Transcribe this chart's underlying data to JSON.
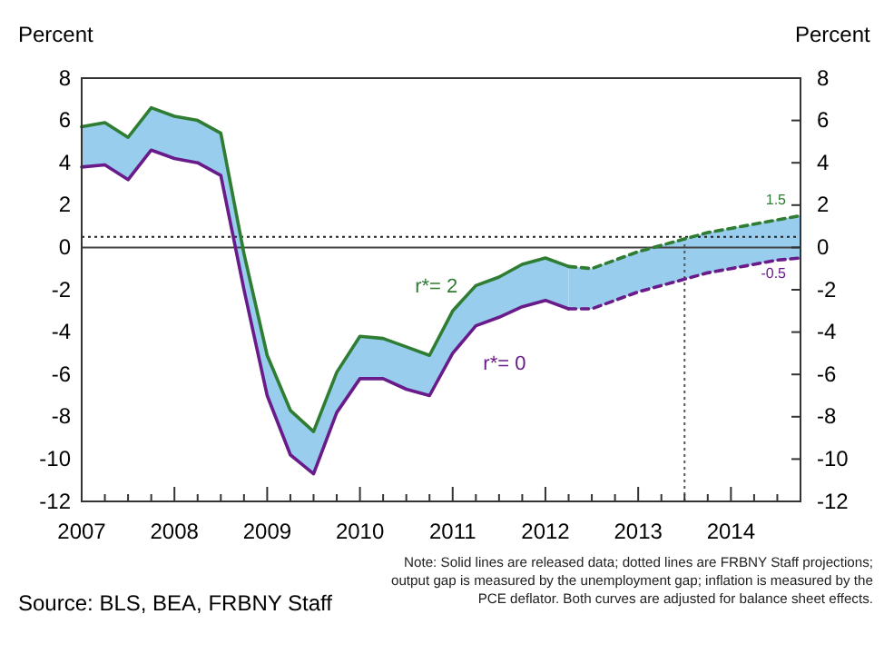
{
  "chart_data": {
    "type": "line",
    "ylabel": "Percent",
    "y2label": "Percent",
    "xlim": [
      2007,
      2014.75
    ],
    "xticks": [
      {
        "value": 2007,
        "label": "2007"
      },
      {
        "value": 2007.25,
        "label": null
      },
      {
        "value": 2007.5,
        "label": null
      },
      {
        "value": 2007.75,
        "label": null
      },
      {
        "value": 2008,
        "label": "2008"
      },
      {
        "value": 2008.25,
        "label": null
      },
      {
        "value": 2008.5,
        "label": null
      },
      {
        "value": 2008.75,
        "label": null
      },
      {
        "value": 2009,
        "label": "2009"
      },
      {
        "value": 2009.25,
        "label": null
      },
      {
        "value": 2009.5,
        "label": null
      },
      {
        "value": 2009.75,
        "label": null
      },
      {
        "value": 2010,
        "label": "2010"
      },
      {
        "value": 2010.25,
        "label": null
      },
      {
        "value": 2010.5,
        "label": null
      },
      {
        "value": 2010.75,
        "label": null
      },
      {
        "value": 2011,
        "label": "2011"
      },
      {
        "value": 2011.25,
        "label": null
      },
      {
        "value": 2011.5,
        "label": null
      },
      {
        "value": 2011.75,
        "label": null
      },
      {
        "value": 2012,
        "label": "2012"
      },
      {
        "value": 2012.25,
        "label": null
      },
      {
        "value": 2012.5,
        "label": null
      },
      {
        "value": 2012.75,
        "label": null
      },
      {
        "value": 2013,
        "label": "2013"
      },
      {
        "value": 2013.25,
        "label": null
      },
      {
        "value": 2013.5,
        "label": null
      },
      {
        "value": 2013.75,
        "label": null
      },
      {
        "value": 2014,
        "label": "2014"
      },
      {
        "value": 2014.25,
        "label": null
      },
      {
        "value": 2014.5,
        "label": null
      }
    ],
    "ylim": [
      -12,
      8
    ],
    "yticks": [
      -12,
      -10,
      -8,
      -6,
      -4,
      -2,
      0,
      2,
      4,
      6,
      8
    ],
    "y2lim": [
      -12,
      8
    ],
    "y2ticks": [
      -12,
      -10,
      -8,
      -6,
      -4,
      -2,
      0,
      2,
      4,
      6,
      8
    ],
    "grid": false,
    "legend": false,
    "marker": "none",
    "series": [
      {
        "name": "r*= 2",
        "color": "#2e7d32",
        "line_style": "solid",
        "x": [
          2007,
          2007.25,
          2007.5,
          2007.75,
          2008,
          2008.25,
          2008.5,
          2008.75,
          2009,
          2009.25,
          2009.5,
          2009.75,
          2010,
          2010.25,
          2010.5,
          2010.75,
          2011,
          2011.25,
          2011.5,
          2011.75,
          2012,
          2012.25
        ],
        "values": [
          5.7,
          5.9,
          5.2,
          6.6,
          6.2,
          6.0,
          5.4,
          -0.3,
          -5.1,
          -7.7,
          -8.7,
          -5.9,
          -4.2,
          -4.3,
          -4.7,
          -5.1,
          -3.0,
          -1.8,
          -1.4,
          -0.8,
          -0.5,
          -0.9
        ],
        "upper": [
          5.7,
          5.9,
          5.2,
          6.6,
          6.2,
          6.0,
          5.4,
          -0.3,
          -5.1,
          -7.7,
          -8.7,
          -5.9,
          -4.2,
          -4.3,
          -4.7,
          -5.1,
          -3.0,
          -1.8,
          -1.4,
          -0.8,
          -0.5,
          -0.9
        ],
        "lower": [
          3.8,
          3.9,
          3.2,
          4.6,
          4.2,
          4.0,
          3.4,
          -2.0,
          -7.0,
          -9.8,
          -10.7,
          -7.8,
          -6.2,
          -6.2,
          -6.7,
          -7.0,
          -5.0,
          -3.7,
          -3.3,
          -2.8,
          -2.5,
          -2.9
        ]
      },
      {
        "color": "#2e7d32",
        "line_style": "dashed",
        "x": [
          2012.25,
          2012.5,
          2012.75,
          2013,
          2013.25,
          2013.5,
          2013.75,
          2014,
          2014.25,
          2014.5,
          2014.75
        ],
        "values": [
          -0.9,
          -1.0,
          -0.6,
          -0.2,
          0.1,
          0.4,
          0.7,
          0.9,
          1.1,
          1.3,
          1.5
        ],
        "upper": [
          -0.9,
          -1.0,
          -0.6,
          -0.2,
          0.1,
          0.4,
          0.7,
          0.9,
          1.1,
          1.3,
          1.5
        ],
        "lower": [
          -2.9,
          -2.9,
          -2.5,
          -2.1,
          -1.8,
          -1.5,
          -1.2,
          -1.0,
          -0.8,
          -0.6,
          -0.5
        ],
        "value_labels": [
          null,
          null,
          null,
          null,
          null,
          null,
          null,
          null,
          null,
          null,
          "1.5"
        ]
      },
      {
        "name": "r*= 0",
        "color": "#6a1b8a",
        "line_style": "solid",
        "x": [
          2007,
          2007.25,
          2007.5,
          2007.75,
          2008,
          2008.25,
          2008.5,
          2008.75,
          2009,
          2009.25,
          2009.5,
          2009.75,
          2010,
          2010.25,
          2010.5,
          2010.75,
          2011,
          2011.25,
          2011.5,
          2011.75,
          2012,
          2012.25
        ],
        "values": [
          3.8,
          3.9,
          3.2,
          4.6,
          4.2,
          4.0,
          3.4,
          -2.0,
          -7.0,
          -9.8,
          -10.7,
          -7.8,
          -6.2,
          -6.2,
          -6.7,
          -7.0,
          -5.0,
          -3.7,
          -3.3,
          -2.8,
          -2.5,
          -2.9
        ]
      },
      {
        "color": "#6a1b8a",
        "line_style": "dashed",
        "x": [
          2012.25,
          2012.5,
          2012.75,
          2013,
          2013.25,
          2013.5,
          2013.75,
          2014,
          2014.25,
          2014.5,
          2014.75
        ],
        "values": [
          -2.9,
          -2.9,
          -2.5,
          -2.1,
          -1.8,
          -1.5,
          -1.2,
          -1.0,
          -0.8,
          -0.6,
          -0.5
        ],
        "value_labels": [
          null,
          null,
          null,
          null,
          null,
          null,
          null,
          null,
          null,
          null,
          "-0.5"
        ]
      }
    ],
    "ref_lines": [
      {
        "axis": "y",
        "value": 0,
        "color": "#444444",
        "line_style": "solid"
      },
      {
        "axis": "y",
        "value": 0.5,
        "color": "#222222",
        "line_style": "dotted"
      },
      {
        "axis": "x",
        "value": 2013.5,
        "color": "#555555",
        "line_style": "dotted"
      }
    ],
    "annotations": [
      "Note: Solid lines are released data; dotted lines are FRBNY Staff projections; output gap is measured by the unemployment gap; inflation is measured by the PCE deflator.  Both curves are adjusted for balance sheet effects.",
      "Source: BLS, BEA, FRBNY Staff"
    ]
  }
}
